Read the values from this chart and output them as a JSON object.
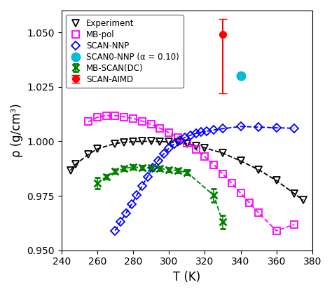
{
  "title": "",
  "xlabel": "T (K)",
  "ylabel": "ρ (g/cm³)",
  "xlim": [
    240,
    380
  ],
  "ylim": [
    0.95,
    1.06
  ],
  "yticks": [
    0.95,
    0.975,
    1.0,
    1.025,
    1.05
  ],
  "xticks": [
    240,
    260,
    280,
    300,
    320,
    340,
    360,
    380
  ],
  "experiment": {
    "T": [
      245,
      248,
      255,
      260,
      270,
      275,
      280,
      285,
      290,
      295,
      300,
      305,
      310,
      315,
      320,
      330,
      340,
      350,
      360,
      370,
      375
    ],
    "rho": [
      0.9867,
      0.9895,
      0.994,
      0.9965,
      0.999,
      0.9995,
      0.9998,
      1.0,
      1.0,
      0.9999,
      0.9997,
      0.9994,
      0.9988,
      0.998,
      0.997,
      0.9946,
      0.991,
      0.987,
      0.982,
      0.976,
      0.973
    ],
    "color": "#000000",
    "label": "Experiment"
  },
  "mb_pol": {
    "T": [
      255,
      260,
      265,
      270,
      275,
      280,
      285,
      290,
      295,
      300,
      305,
      310,
      315,
      320,
      325,
      330,
      335,
      340,
      345,
      350,
      360,
      370
    ],
    "rho": [
      1.009,
      1.011,
      1.0118,
      1.0118,
      1.0112,
      1.0105,
      1.0093,
      1.0078,
      1.006,
      1.004,
      1.0018,
      0.9992,
      0.9963,
      0.993,
      0.9893,
      0.985,
      0.9808,
      0.9762,
      0.9718,
      0.9672,
      0.959,
      0.9618
    ],
    "color": "#ff00ff",
    "label": "MB-pol"
  },
  "mb_scan": {
    "T": [
      260,
      265,
      270,
      275,
      280,
      285,
      290,
      295,
      300,
      305,
      310,
      325,
      330
    ],
    "rho": [
      0.9808,
      0.9838,
      0.9862,
      0.9875,
      0.9882,
      0.9878,
      0.9878,
      0.9875,
      0.987,
      0.9865,
      0.9858,
      0.9752,
      0.963
    ],
    "rho_err": [
      0.0025,
      0.001,
      0.001,
      0.001,
      0.001,
      0.001,
      0.001,
      0.001,
      0.001,
      0.001,
      0.001,
      0.003,
      0.003
    ],
    "color": "#008000",
    "label": "MB-SCAN(DC)"
  },
  "scan_nnp": {
    "T": [
      270,
      273,
      276,
      279,
      282,
      285,
      288,
      291,
      294,
      297,
      300,
      303,
      306,
      309,
      312,
      315,
      318,
      321,
      325,
      330,
      340,
      350,
      360,
      370
    ],
    "rho": [
      0.959,
      0.9632,
      0.967,
      0.971,
      0.9752,
      0.9795,
      0.9838,
      0.9878,
      0.9912,
      0.9942,
      0.9968,
      0.9988,
      1.0005,
      1.0018,
      1.0028,
      1.0036,
      1.0042,
      1.0046,
      1.0052,
      1.0058,
      1.0068,
      1.0065,
      1.0062,
      1.006
    ],
    "color": "#0000ff",
    "label": "SCAN-NNP"
  },
  "scan_aimd": {
    "T": [
      330
    ],
    "rho": [
      1.049
    ],
    "rho_err_up": [
      0.007
    ],
    "rho_err_dn": [
      0.027
    ],
    "color": "#ff0000",
    "label": "SCAN-AIMD"
  },
  "scan0_nnp": {
    "T": [
      340
    ],
    "rho": [
      1.03
    ],
    "color": "#00bcd4",
    "label": "SCAN0-NNP (α = 0.10)"
  }
}
